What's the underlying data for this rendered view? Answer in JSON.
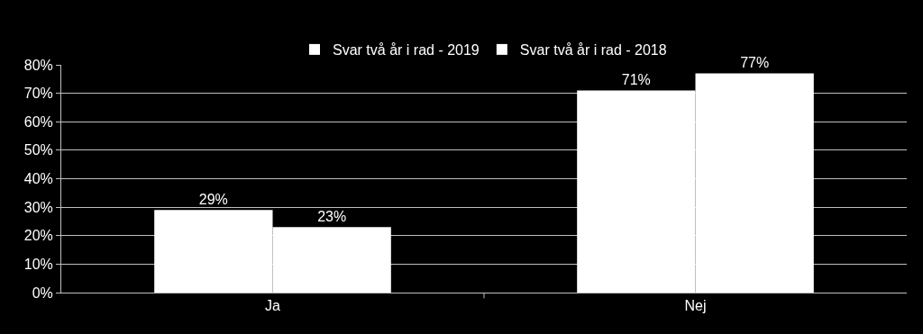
{
  "chart_data": {
    "type": "bar",
    "categories": [
      "Ja",
      "Nej"
    ],
    "series": [
      {
        "name": "Svar två år i rad - 2019",
        "color": "#ffffff",
        "values": [
          29,
          71
        ],
        "value_labels": [
          "29%",
          "71%"
        ]
      },
      {
        "name": "Svar två år i rad - 2018",
        "color": "#ffffff",
        "values": [
          23,
          77
        ],
        "value_labels": [
          "23%",
          "77%"
        ]
      }
    ],
    "ylim": [
      0,
      80
    ],
    "yticks": [
      {
        "value": 0,
        "label": "0%"
      },
      {
        "value": 10,
        "label": "10%"
      },
      {
        "value": 20,
        "label": "20%"
      },
      {
        "value": 30,
        "label": "30%"
      },
      {
        "value": 40,
        "label": "40%"
      },
      {
        "value": 50,
        "label": "50%"
      },
      {
        "value": 60,
        "label": "60%"
      },
      {
        "value": 70,
        "label": "70%"
      },
      {
        "value": 80,
        "label": "80%"
      }
    ],
    "grid": "y",
    "legend": "top"
  }
}
